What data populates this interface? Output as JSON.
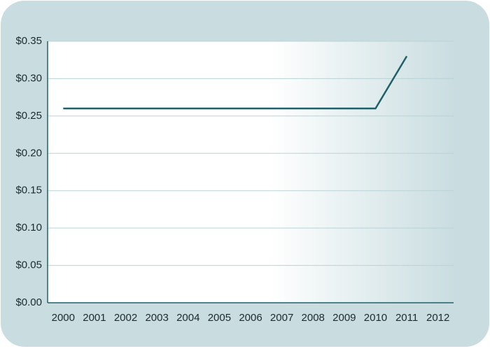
{
  "chart_data": {
    "type": "line",
    "categories": [
      "2000",
      "2001",
      "2002",
      "2003",
      "2004",
      "2005",
      "2006",
      "2007",
      "2008",
      "2009",
      "2010",
      "2011",
      "2012"
    ],
    "values": [
      0.26,
      0.26,
      0.26,
      0.26,
      0.26,
      0.26,
      0.26,
      0.26,
      0.26,
      0.26,
      0.26,
      0.33,
      null
    ],
    "color": "#1f6168",
    "ylim": [
      0,
      0.35
    ],
    "yticks": [
      {
        "value": 0,
        "label": "$0.00"
      },
      {
        "value": 0.05,
        "label": "$0.05"
      },
      {
        "value": 0.1,
        "label": "$0.10"
      },
      {
        "value": 0.15,
        "label": "$0.15"
      },
      {
        "value": 0.2,
        "label": "$0.20"
      },
      {
        "value": 0.25,
        "label": "$0.25"
      },
      {
        "value": 0.3,
        "label": "$0.30"
      },
      {
        "value": 0.35,
        "label": "$0.35"
      }
    ],
    "grid": true
  }
}
